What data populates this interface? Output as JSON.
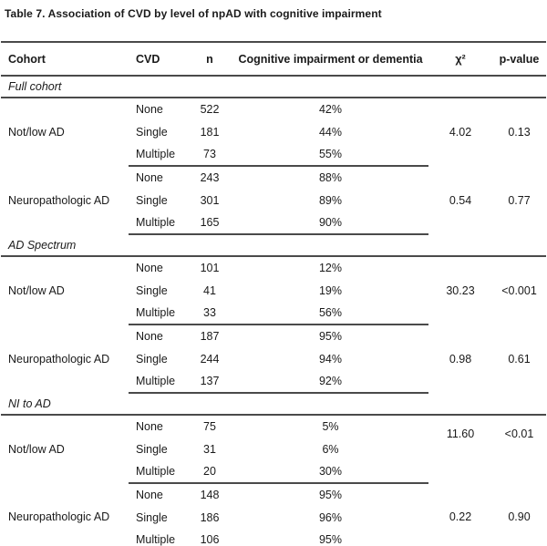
{
  "title": "Table 7. Association of CVD by level of npAD with cognitive impairment",
  "table": {
    "columns": [
      "Cohort",
      "CVD",
      "n",
      "Cognitive impairment or dementia",
      "χ²",
      "p-value"
    ],
    "sections": [
      {
        "label": "Full cohort",
        "groups": [
          {
            "cohort": "Not/low AD",
            "rows": [
              [
                "None",
                "522",
                "42%"
              ],
              [
                "Single",
                "181",
                "44%"
              ],
              [
                "Multiple",
                "73",
                "55%"
              ]
            ],
            "chi2": "4.02",
            "p": "0.13"
          },
          {
            "cohort": "Neuropathologic AD",
            "rows": [
              [
                "None",
                "243",
                "88%"
              ],
              [
                "Single",
                "301",
                "89%"
              ],
              [
                "Multiple",
                "165",
                "90%"
              ]
            ],
            "chi2": "0.54",
            "p": "0.77"
          }
        ]
      },
      {
        "label": "AD Spectrum",
        "groups": [
          {
            "cohort": "Not/low AD",
            "rows": [
              [
                "None",
                "101",
                "12%"
              ],
              [
                "Single",
                "41",
                "19%"
              ],
              [
                "Multiple",
                "33",
                "56%"
              ]
            ],
            "chi2": "30.23",
            "p": "<0.001"
          },
          {
            "cohort": "Neuropathologic AD",
            "rows": [
              [
                "None",
                "187",
                "95%"
              ],
              [
                "Single",
                "244",
                "94%"
              ],
              [
                "Multiple",
                "137",
                "92%"
              ]
            ],
            "chi2": "0.98",
            "p": "0.61"
          }
        ]
      },
      {
        "label": "NI to AD",
        "groups": [
          {
            "cohort": "Not/low AD",
            "rows": [
              [
                "None",
                "75",
                "5%"
              ],
              [
                "Single",
                "31",
                "6%"
              ],
              [
                "Multiple",
                "20",
                "30%"
              ]
            ],
            "chi2": "11.60",
            "p": "<0.01",
            "stat_position": "high"
          },
          {
            "cohort": "Neuropathologic AD",
            "rows": [
              [
                "None",
                "148",
                "95%"
              ],
              [
                "Single",
                "186",
                "96%"
              ],
              [
                "Multiple",
                "106",
                "95%"
              ]
            ],
            "chi2": "0.22",
            "p": "0.90"
          }
        ]
      }
    ]
  },
  "colors": {
    "text": "#1a1a1a",
    "rule": "#4a4a4a",
    "background": "#ffffff"
  }
}
